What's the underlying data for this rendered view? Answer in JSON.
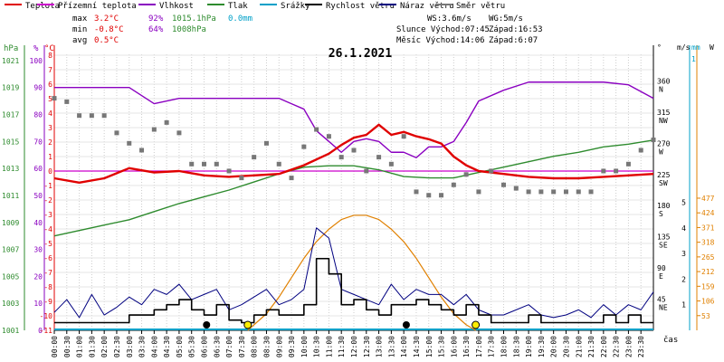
{
  "legend": [
    {
      "label": "Teplota",
      "color": "#e00000"
    },
    {
      "label": "Přízemní teplota",
      "color": "#cc00cc"
    },
    {
      "label": "Vlhkost",
      "color": "#8a00c0"
    },
    {
      "label": "Tlak",
      "color": "#2e8b2e"
    },
    {
      "label": "Srážky",
      "color": "#00a0c8"
    },
    {
      "label": "Rychlost větru",
      "color": "#000000"
    },
    {
      "label": "Náraz větru",
      "color": "#000080"
    },
    {
      "label": "Směr větru",
      "color": "#777777"
    }
  ],
  "stats": {
    "max_label": "max",
    "min_label": "min",
    "avg_label": "avg",
    "max_temp": "3.2°C",
    "max_hum": "92%",
    "max_press": "1015.1hPa",
    "max_rain": "0.0mm",
    "min_temp": "-0.8°C",
    "min_hum": "64%",
    "min_press": "1008hPa",
    "avg_temp": "0.5°C",
    "ws": "WS:3.6m/s",
    "wg": "WG:5m/s",
    "slunce": "Slunce Východ:07:45",
    "slunce_zapad": "Západ:16:53",
    "mesic": "Měsíc  Východ:14:06",
    "mesic_zapad": "Západ:6:07"
  },
  "unit_labels": {
    "hpa": "hPa",
    "pct": "%",
    "degc": "°C",
    "deg": "°",
    "ms": "m/s",
    "mm": "mm",
    "w": "W",
    "cas": "čas"
  },
  "chart_data": {
    "type": "line",
    "title": "26.1.2021",
    "x_ticks": [
      "00:00",
      "00:30",
      "01:00",
      "01:30",
      "02:00",
      "02:30",
      "03:00",
      "03:30",
      "04:00",
      "04:30",
      "05:00",
      "05:30",
      "06:00",
      "06:30",
      "07:00",
      "07:30",
      "08:00",
      "08:30",
      "09:00",
      "09:30",
      "10:00",
      "10:30",
      "11:00",
      "11:30",
      "12:00",
      "12:30",
      "13:00",
      "13:30",
      "14:00",
      "14:30",
      "15:00",
      "15:30",
      "16:00",
      "16:30",
      "17:00",
      "17:30",
      "18:00",
      "18:30",
      "19:00",
      "19:30",
      "20:00",
      "20:30",
      "21:00",
      "21:30",
      "22:00",
      "22:30",
      "23:00",
      "23:30"
    ],
    "xlim_hours": [
      0,
      24
    ],
    "axes": {
      "pressure_hpa": {
        "ticks": [
          "1021",
          "1019",
          "1017",
          "1015",
          "1013",
          "1011",
          "1009",
          "1007",
          "1005",
          "1003",
          "1001"
        ],
        "range": [
          1001,
          1022
        ]
      },
      "humidity_pct": {
        "ticks": [
          "100",
          "90",
          "80",
          "70",
          "60",
          "50",
          "40",
          "30",
          "20",
          "10",
          "0"
        ],
        "range": [
          0,
          105
        ]
      },
      "temperature_c": {
        "ticks": [
          "8",
          "7",
          "6",
          "5",
          "4",
          "3",
          "2",
          "1",
          "0",
          "-1",
          "-2",
          "-3",
          "-4",
          "-5",
          "-6",
          "-7",
          "-8",
          "-9",
          "-10",
          "-11"
        ],
        "range": [
          -11,
          9
        ]
      },
      "wind_dir_deg": {
        "ticks": [
          "360",
          "315",
          "270",
          "225",
          "180",
          "135",
          "90",
          "45"
        ],
        "labels": [
          "N",
          "NW",
          "W",
          "SW",
          "S",
          "SE",
          "E",
          "NE"
        ],
        "range": [
          0,
          405
        ]
      },
      "wind_ms": {
        "ticks": [
          "5",
          "4",
          "3",
          "2",
          "1"
        ],
        "range": [
          0,
          5.3
        ]
      },
      "rain_mm": {
        "ticks": [
          "1"
        ],
        "range": [
          0,
          1
        ]
      },
      "solar_w": {
        "ticks": [
          "477",
          "424",
          "371",
          "318",
          "265",
          "212",
          "159",
          "106",
          "53"
        ],
        "range": [
          0,
          490
        ]
      }
    },
    "series": [
      {
        "name": "Teplota",
        "unit": "°C",
        "x": [
          0,
          1,
          2,
          3,
          4,
          5,
          6,
          7,
          8,
          9,
          10,
          11,
          11.5,
          12,
          12.5,
          13,
          13.5,
          14,
          14.5,
          15,
          15.5,
          16,
          16.5,
          17,
          18,
          19,
          20,
          21,
          22,
          23,
          24
        ],
        "y": [
          -0.5,
          -0.8,
          -0.5,
          0.2,
          -0.1,
          0.0,
          -0.3,
          -0.4,
          -0.3,
          -0.2,
          0.4,
          1.2,
          1.8,
          2.3,
          2.5,
          3.2,
          2.5,
          2.7,
          2.4,
          2.2,
          1.9,
          1.0,
          0.4,
          0.0,
          -0.2,
          -0.4,
          -0.5,
          -0.5,
          -0.4,
          -0.3,
          -0.2
        ]
      },
      {
        "name": "Přízemní teplota",
        "unit": "°C",
        "x": [
          0,
          24
        ],
        "y": [
          0.0,
          0.0
        ]
      },
      {
        "name": "Vlhkost",
        "unit": "%",
        "x": [
          0,
          2,
          3,
          4,
          5,
          6,
          7,
          8,
          9,
          9.5,
          10,
          10.5,
          11,
          11.5,
          12,
          12.5,
          13,
          13.5,
          14,
          14.5,
          15,
          15.5,
          16,
          16.5,
          17,
          18,
          19,
          20,
          21,
          22,
          23,
          24
        ],
        "y": [
          90,
          90,
          90,
          84,
          86,
          86,
          86,
          86,
          86,
          84,
          82,
          74,
          70,
          66,
          70,
          71,
          70,
          66,
          66,
          64,
          68,
          68,
          70,
          77,
          85,
          89,
          92,
          92,
          92,
          92,
          91,
          86
        ]
      },
      {
        "name": "Tlak",
        "unit": "hPa",
        "x": [
          0,
          1,
          2,
          3,
          4,
          5,
          6,
          7,
          8,
          9,
          10,
          11,
          12,
          13,
          14,
          15,
          16,
          17,
          18,
          19,
          20,
          21,
          22,
          23,
          24
        ],
        "y": [
          1008.0,
          1008.4,
          1008.8,
          1009.2,
          1009.8,
          1010.4,
          1010.9,
          1011.4,
          1012.0,
          1012.6,
          1013.1,
          1013.2,
          1013.2,
          1012.9,
          1012.4,
          1012.3,
          1012.3,
          1012.7,
          1013.1,
          1013.5,
          1013.9,
          1014.2,
          1014.6,
          1014.8,
          1015.1
        ]
      },
      {
        "name": "Srážky",
        "unit": "mm",
        "x": [
          0,
          24
        ],
        "y": [
          0.0,
          0.0
        ]
      },
      {
        "name": "Rychlost větru",
        "unit": "m/s",
        "x": [
          0,
          0.5,
          1,
          1.5,
          2,
          2.5,
          3,
          3.5,
          4,
          4.5,
          5,
          5.5,
          6,
          6.5,
          7,
          7.5,
          8,
          8.5,
          9,
          9.5,
          10,
          10.5,
          11,
          11.5,
          12,
          12.5,
          13,
          13.5,
          14,
          14.5,
          15,
          15.5,
          16,
          16.5,
          17,
          17.5,
          18,
          18.5,
          19,
          19.5,
          20,
          20.5,
          21,
          21.5,
          22,
          22.5,
          23,
          23.5,
          24
        ],
        "y": [
          0.3,
          0.3,
          0.3,
          0.3,
          0.3,
          0.3,
          0.6,
          0.6,
          0.8,
          1.0,
          1.2,
          0.8,
          0.6,
          1.0,
          0.4,
          0.3,
          0.6,
          0.8,
          0.6,
          0.6,
          1.0,
          2.8,
          2.2,
          1.0,
          1.2,
          0.8,
          0.6,
          1.0,
          1.0,
          1.2,
          1.0,
          0.8,
          0.6,
          1.0,
          0.6,
          0.3,
          0.3,
          0.3,
          0.6,
          0.3,
          0.3,
          0.3,
          0.3,
          0.3,
          0.6,
          0.3,
          0.6,
          0.3,
          0.3
        ]
      },
      {
        "name": "Náraz větru",
        "unit": "m/s",
        "x": [
          0,
          0.5,
          1,
          1.5,
          2,
          2.5,
          3,
          3.5,
          4,
          4.5,
          5,
          5.5,
          6,
          6.5,
          7,
          7.5,
          8,
          8.5,
          9,
          9.5,
          10,
          10.5,
          11,
          11.5,
          12,
          12.5,
          13,
          13.5,
          14,
          14.5,
          15,
          15.5,
          16,
          16.5,
          17,
          17.5,
          18,
          18.5,
          19,
          19.5,
          20,
          20.5,
          21,
          21.5,
          22,
          22.5,
          23,
          23.5,
          24
        ],
        "y": [
          0.7,
          1.2,
          0.5,
          1.4,
          0.6,
          0.9,
          1.3,
          1.0,
          1.6,
          1.4,
          1.8,
          1.2,
          1.4,
          1.6,
          0.8,
          1.0,
          1.3,
          1.6,
          1.0,
          1.2,
          1.6,
          4.0,
          3.6,
          1.6,
          1.4,
          1.2,
          1.0,
          1.8,
          1.2,
          1.6,
          1.4,
          1.4,
          1.0,
          1.4,
          0.8,
          0.6,
          0.6,
          0.8,
          1.0,
          0.6,
          0.5,
          0.6,
          0.8,
          0.5,
          1.0,
          0.6,
          1.0,
          0.8,
          1.5
        ]
      },
      {
        "name": "Směr větru",
        "unit": "°",
        "x": [
          0,
          0.5,
          1,
          1.5,
          2,
          2.5,
          3,
          3.5,
          4,
          4.5,
          5,
          5.5,
          6,
          6.5,
          7,
          7.5,
          8,
          8.5,
          9,
          9.5,
          10,
          10.5,
          11,
          11.5,
          12,
          12.5,
          13,
          13.5,
          14,
          14.5,
          15,
          15.5,
          16,
          16.5,
          17,
          17.5,
          18,
          18.5,
          19,
          19.5,
          20,
          20.5,
          21,
          21.5,
          22,
          22.5,
          23,
          23.5,
          24
        ],
        "y": [
          335,
          330,
          310,
          310,
          310,
          285,
          270,
          260,
          290,
          300,
          285,
          240,
          240,
          240,
          230,
          220,
          250,
          270,
          240,
          220,
          265,
          290,
          280,
          250,
          260,
          230,
          250,
          240,
          280,
          200,
          195,
          195,
          210,
          225,
          200,
          230,
          210,
          205,
          200,
          200,
          200,
          200,
          200,
          200,
          230,
          230,
          240,
          260,
          275
        ]
      },
      {
        "name": "Solar",
        "unit": "W",
        "x": [
          7.75,
          8.5,
          9,
          9.5,
          10,
          10.5,
          11,
          11.5,
          12,
          12.5,
          13,
          13.5,
          14,
          14.5,
          15,
          15.5,
          16,
          16.5,
          16.88
        ],
        "y": [
          0,
          60,
          120,
          190,
          260,
          320,
          365,
          400,
          415,
          415,
          400,
          365,
          320,
          260,
          190,
          120,
          60,
          20,
          0
        ]
      }
    ],
    "markers": [
      {
        "type": "moonset",
        "time": 6.1
      },
      {
        "type": "sunrise",
        "time": 7.75
      },
      {
        "type": "moonrise",
        "time": 14.1
      },
      {
        "type": "sunset",
        "time": 16.88
      }
    ]
  }
}
